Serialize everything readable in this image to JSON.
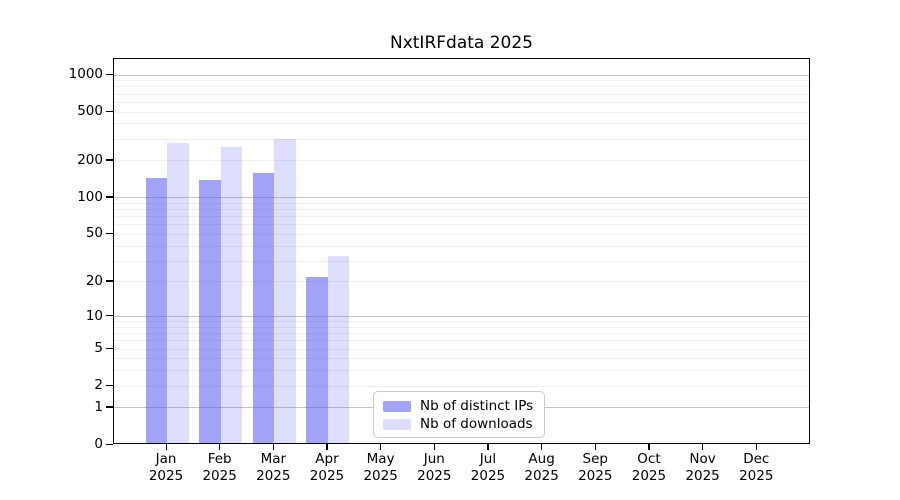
{
  "chart_data": {
    "type": "bar",
    "title": "NxtIRFdata 2025",
    "y_scale": "log10(value+1)",
    "ylim": [
      0,
      1000
    ],
    "grid": "on",
    "legend_position": "lower-center-inside",
    "categories": [
      "Jan",
      "Feb",
      "Mar",
      "Apr",
      "May",
      "Jun",
      "Jul",
      "Aug",
      "Sep",
      "Oct",
      "Nov",
      "Dec"
    ],
    "x_year_label": "2025",
    "series": [
      {
        "name": "Nb of distinct IPs",
        "color": "rgba(85,85,238,0.55)",
        "values": [
          145,
          140,
          160,
          22,
          0,
          0,
          0,
          0,
          0,
          0,
          0,
          0
        ]
      },
      {
        "name": "Nb of downloads",
        "color": "rgba(85,85,238,0.20)",
        "values": [
          280,
          260,
          300,
          33,
          0,
          0,
          0,
          0,
          0,
          0,
          0,
          0
        ]
      }
    ],
    "y_ticks": [
      0,
      1,
      2,
      5,
      10,
      20,
      50,
      100,
      200,
      500,
      1000
    ],
    "major_gridlines": [
      1,
      10,
      100,
      1000
    ],
    "minor_gridlines": [
      2,
      3,
      4,
      5,
      6,
      7,
      8,
      9,
      20,
      30,
      40,
      50,
      60,
      70,
      80,
      90,
      200,
      300,
      400,
      500,
      600,
      700,
      800,
      900
    ],
    "colors": {
      "grid_major": "#c6c6c6",
      "grid_minor": "#eeeeee",
      "axis": "#000000",
      "legend_border": "#cccccc"
    }
  }
}
